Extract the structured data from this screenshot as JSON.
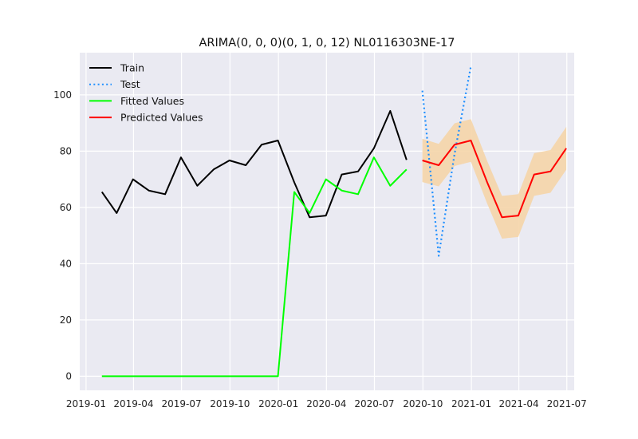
{
  "chart_data": {
    "type": "line",
    "title": "ARIMA(0, 0, 0)(0, 1, 0, 12) NL0116303NE-17",
    "xlabel": "",
    "ylabel": "",
    "x_range": [
      "2018-12-20",
      "2021-07-15"
    ],
    "ylim": [
      -5,
      115
    ],
    "y_ticks": [
      0,
      20,
      40,
      60,
      80,
      100
    ],
    "x_ticks": [
      {
        "date": "2019-01-01",
        "label": "2019-01"
      },
      {
        "date": "2019-04-01",
        "label": "2019-04"
      },
      {
        "date": "2019-07-01",
        "label": "2019-07"
      },
      {
        "date": "2019-10-01",
        "label": "2019-10"
      },
      {
        "date": "2020-01-01",
        "label": "2020-01"
      },
      {
        "date": "2020-04-01",
        "label": "2020-04"
      },
      {
        "date": "2020-07-01",
        "label": "2020-07"
      },
      {
        "date": "2020-10-01",
        "label": "2020-10"
      },
      {
        "date": "2021-01-01",
        "label": "2021-01"
      },
      {
        "date": "2021-04-01",
        "label": "2021-04"
      },
      {
        "date": "2021-07-01",
        "label": "2021-07"
      }
    ],
    "grid": true,
    "legend_position": "upper-left",
    "series": [
      {
        "name": "Train",
        "style": "solid",
        "color": "#000000",
        "x": [
          "2019-01-31",
          "2019-02-28",
          "2019-03-31",
          "2019-04-30",
          "2019-05-31",
          "2019-06-30",
          "2019-07-31",
          "2019-08-31",
          "2019-09-30",
          "2019-10-31",
          "2019-11-30",
          "2019-12-31",
          "2020-01-31",
          "2020-02-29",
          "2020-03-31",
          "2020-04-30",
          "2020-05-31",
          "2020-06-30",
          "2020-07-31",
          "2020-08-31"
        ],
        "y": [
          65.5,
          58.0,
          70.0,
          66.0,
          64.7,
          77.8,
          67.7,
          73.5,
          76.7,
          75.0,
          82.3,
          83.8,
          68.9,
          56.5,
          57.1,
          71.7,
          72.8,
          81.0,
          94.3,
          76.9
        ]
      },
      {
        "name": "Test",
        "style": "dotted",
        "color": "#1f8fff",
        "x": [
          "2020-09-30",
          "2020-10-31",
          "2020-11-30",
          "2020-12-31"
        ],
        "y": [
          101.5,
          42.8,
          79.0,
          110.2
        ]
      },
      {
        "name": "Fitted Values",
        "style": "solid",
        "color": "#00ff00",
        "x": [
          "2019-01-31",
          "2019-02-28",
          "2019-03-31",
          "2019-04-30",
          "2019-05-31",
          "2019-06-30",
          "2019-07-31",
          "2019-08-31",
          "2019-09-30",
          "2019-10-31",
          "2019-11-30",
          "2019-12-31",
          "2020-01-31",
          "2020-02-29",
          "2020-03-31",
          "2020-04-30",
          "2020-05-31",
          "2020-06-30",
          "2020-07-31",
          "2020-08-31"
        ],
        "y": [
          0,
          0,
          0,
          0,
          0,
          0,
          0,
          0,
          0,
          0,
          0,
          0,
          65.5,
          58.0,
          70.0,
          66.0,
          64.7,
          77.8,
          67.7,
          73.5
        ]
      },
      {
        "name": "Predicted Values",
        "style": "solid",
        "color": "#ff0000",
        "x": [
          "2020-09-30",
          "2020-10-31",
          "2020-11-30",
          "2020-12-31",
          "2021-01-31",
          "2021-02-28",
          "2021-03-31",
          "2021-04-30",
          "2021-05-31",
          "2021-06-30"
        ],
        "y": [
          76.7,
          75.0,
          82.3,
          83.8,
          68.9,
          56.5,
          57.1,
          71.7,
          72.8,
          81.0
        ]
      }
    ],
    "confidence_band": {
      "color": "#f5d5a8",
      "x": [
        "2020-09-30",
        "2020-10-31",
        "2020-11-30",
        "2020-12-31",
        "2021-01-31",
        "2021-02-28",
        "2021-03-31",
        "2021-04-30",
        "2021-05-31",
        "2021-06-30"
      ],
      "lower": [
        69.0,
        67.5,
        74.7,
        76.2,
        61.3,
        48.9,
        49.5,
        64.1,
        65.2,
        73.4
      ],
      "upper": [
        84.4,
        82.6,
        89.9,
        91.4,
        76.5,
        64.1,
        64.7,
        79.3,
        80.4,
        88.6
      ]
    }
  }
}
